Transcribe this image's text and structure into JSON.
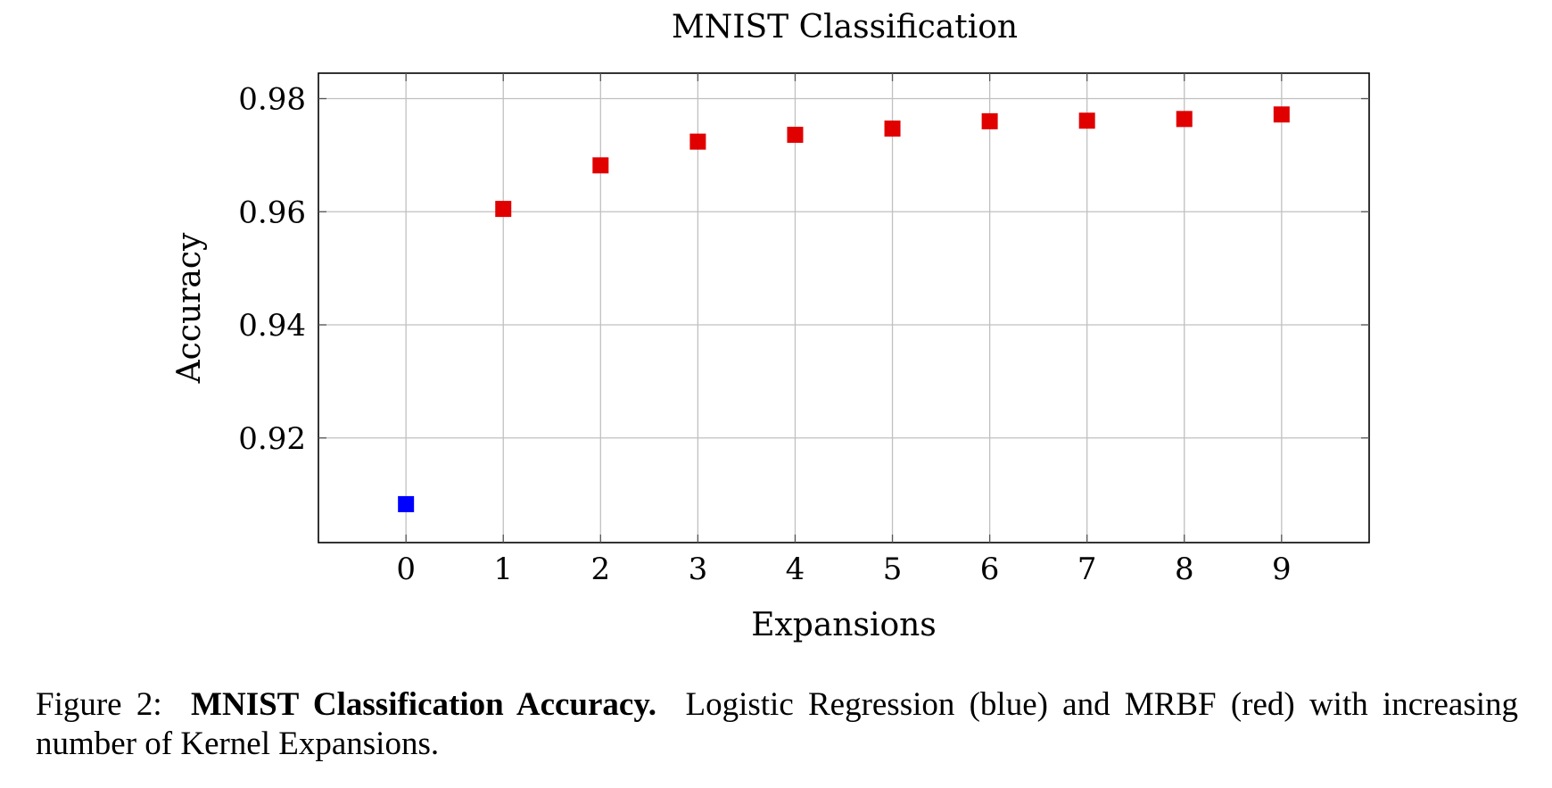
{
  "chart_data": {
    "type": "scatter",
    "title": "MNIST Classification",
    "xlabel": "Expansions",
    "ylabel": "Accuracy",
    "xlim": [
      -0.9,
      9.9
    ],
    "ylim": [
      0.9015,
      0.9845
    ],
    "xticks": [
      0,
      1,
      2,
      3,
      4,
      5,
      6,
      7,
      8,
      9
    ],
    "xtick_labels": [
      "0",
      "1",
      "2",
      "3",
      "4",
      "5",
      "6",
      "7",
      "8",
      "9"
    ],
    "yticks": [
      0.92,
      0.94,
      0.96,
      0.98
    ],
    "ytick_labels": [
      "0.92",
      "0.94",
      "0.96",
      "0.98"
    ],
    "grid": true,
    "series": [
      {
        "color": "#0000ff",
        "marker": "square",
        "x": [
          0
        ],
        "y": [
          0.9083
        ]
      },
      {
        "color": "#e00000",
        "marker": "square",
        "x": [
          1,
          2,
          3,
          4,
          5,
          6,
          7,
          8,
          9
        ],
        "y": [
          0.9605,
          0.9682,
          0.9724,
          0.9736,
          0.9747,
          0.976,
          0.9761,
          0.9764,
          0.9772
        ]
      }
    ]
  },
  "caption": {
    "prefix": "Figure 2:",
    "bold": "MNIST Classification Accuracy.",
    "text": "Logistic Regression (blue) and MRBF (red) with increasing number of Kernel Expansions."
  }
}
